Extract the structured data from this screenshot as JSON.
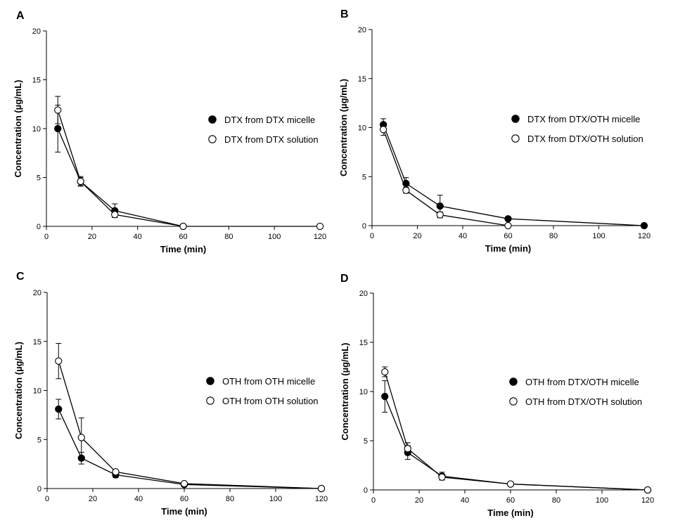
{
  "chart_data": [
    {
      "panel": "A",
      "type": "line",
      "xlabel": "Time (min)",
      "ylabel": "Concentration (µg/mL)",
      "xlim": [
        0,
        120
      ],
      "ylim": [
        0,
        20
      ],
      "xticks": [
        0,
        20,
        40,
        60,
        80,
        100,
        120
      ],
      "yticks": [
        0,
        5,
        10,
        15,
        20
      ],
      "legend_position": "center-right",
      "series": [
        {
          "name": "DTX from DTX micelle",
          "marker": "filled",
          "x": [
            5,
            15,
            30,
            60
          ],
          "y": [
            10.0,
            4.6,
            1.6,
            0.0
          ],
          "err": [
            2.4,
            0.5,
            0.7,
            0.0
          ]
        },
        {
          "name": "DTX from DTX solution",
          "marker": "open",
          "x": [
            5,
            15,
            30,
            60,
            120
          ],
          "y": [
            11.9,
            4.6,
            1.2,
            0.0,
            0.0
          ],
          "err": [
            1.4,
            0.4,
            0.3,
            0.0,
            0.0
          ]
        }
      ]
    },
    {
      "panel": "B",
      "type": "line",
      "xlabel": "Time (min)",
      "ylabel": "Concentration (µg/mL)",
      "xlim": [
        0,
        120
      ],
      "ylim": [
        0,
        20
      ],
      "xticks": [
        0,
        20,
        40,
        60,
        80,
        100,
        120
      ],
      "yticks": [
        0,
        5,
        10,
        15,
        20
      ],
      "legend_position": "center-right",
      "series": [
        {
          "name": "DTX from DTX/OTH micelle",
          "marker": "filled",
          "x": [
            5,
            15,
            30,
            60,
            120
          ],
          "y": [
            10.3,
            4.3,
            2.0,
            0.7,
            0.0
          ],
          "err": [
            0.6,
            0.6,
            1.1,
            0.0,
            0.0
          ]
        },
        {
          "name": "DTX from DTX/OTH solution",
          "marker": "open",
          "x": [
            5,
            15,
            30,
            60
          ],
          "y": [
            9.8,
            3.6,
            1.1,
            0.0
          ],
          "err": [
            0.6,
            0.3,
            0.3,
            0.0
          ]
        }
      ]
    },
    {
      "panel": "C",
      "type": "line",
      "xlabel": "Time (min)",
      "ylabel": "Concentration (µg/mL)",
      "xlim": [
        0,
        120
      ],
      "ylim": [
        0,
        20
      ],
      "xticks": [
        0,
        20,
        40,
        60,
        80,
        100,
        120
      ],
      "yticks": [
        0,
        5,
        10,
        15,
        20
      ],
      "legend_position": "center-right",
      "series": [
        {
          "name": "OTH from OTH micelle",
          "marker": "filled",
          "x": [
            5,
            15,
            30,
            60,
            120
          ],
          "y": [
            8.1,
            3.1,
            1.4,
            0.4,
            0.0
          ],
          "err": [
            1.0,
            0.6,
            0.3,
            0.1,
            0.0
          ]
        },
        {
          "name": "OTH from OTH solution",
          "marker": "open",
          "x": [
            5,
            15,
            30,
            60,
            120
          ],
          "y": [
            13.0,
            5.2,
            1.7,
            0.5,
            0.0
          ],
          "err": [
            1.8,
            2.0,
            0.2,
            0.1,
            0.0
          ]
        }
      ]
    },
    {
      "panel": "D",
      "type": "line",
      "xlabel": "Time (min)",
      "ylabel": "Concentration (µg/mL)",
      "xlim": [
        0,
        120
      ],
      "ylim": [
        0,
        20
      ],
      "xticks": [
        0,
        20,
        40,
        60,
        80,
        100,
        120
      ],
      "yticks": [
        0,
        5,
        10,
        15,
        20
      ],
      "legend_position": "center-right",
      "series": [
        {
          "name": "OTH from DTX/OTH micelle",
          "marker": "filled",
          "x": [
            5,
            15,
            30,
            60,
            120
          ],
          "y": [
            9.5,
            3.8,
            1.4,
            0.6,
            0.0
          ],
          "err": [
            1.6,
            0.7,
            0.4,
            0.0,
            0.0
          ]
        },
        {
          "name": "OTH from DTX/OTH solution",
          "marker": "open",
          "x": [
            5,
            15,
            30,
            60,
            120
          ],
          "y": [
            12.0,
            4.2,
            1.3,
            0.6,
            0.0
          ],
          "err": [
            0.5,
            0.6,
            0.3,
            0.0,
            0.0
          ]
        }
      ]
    }
  ]
}
